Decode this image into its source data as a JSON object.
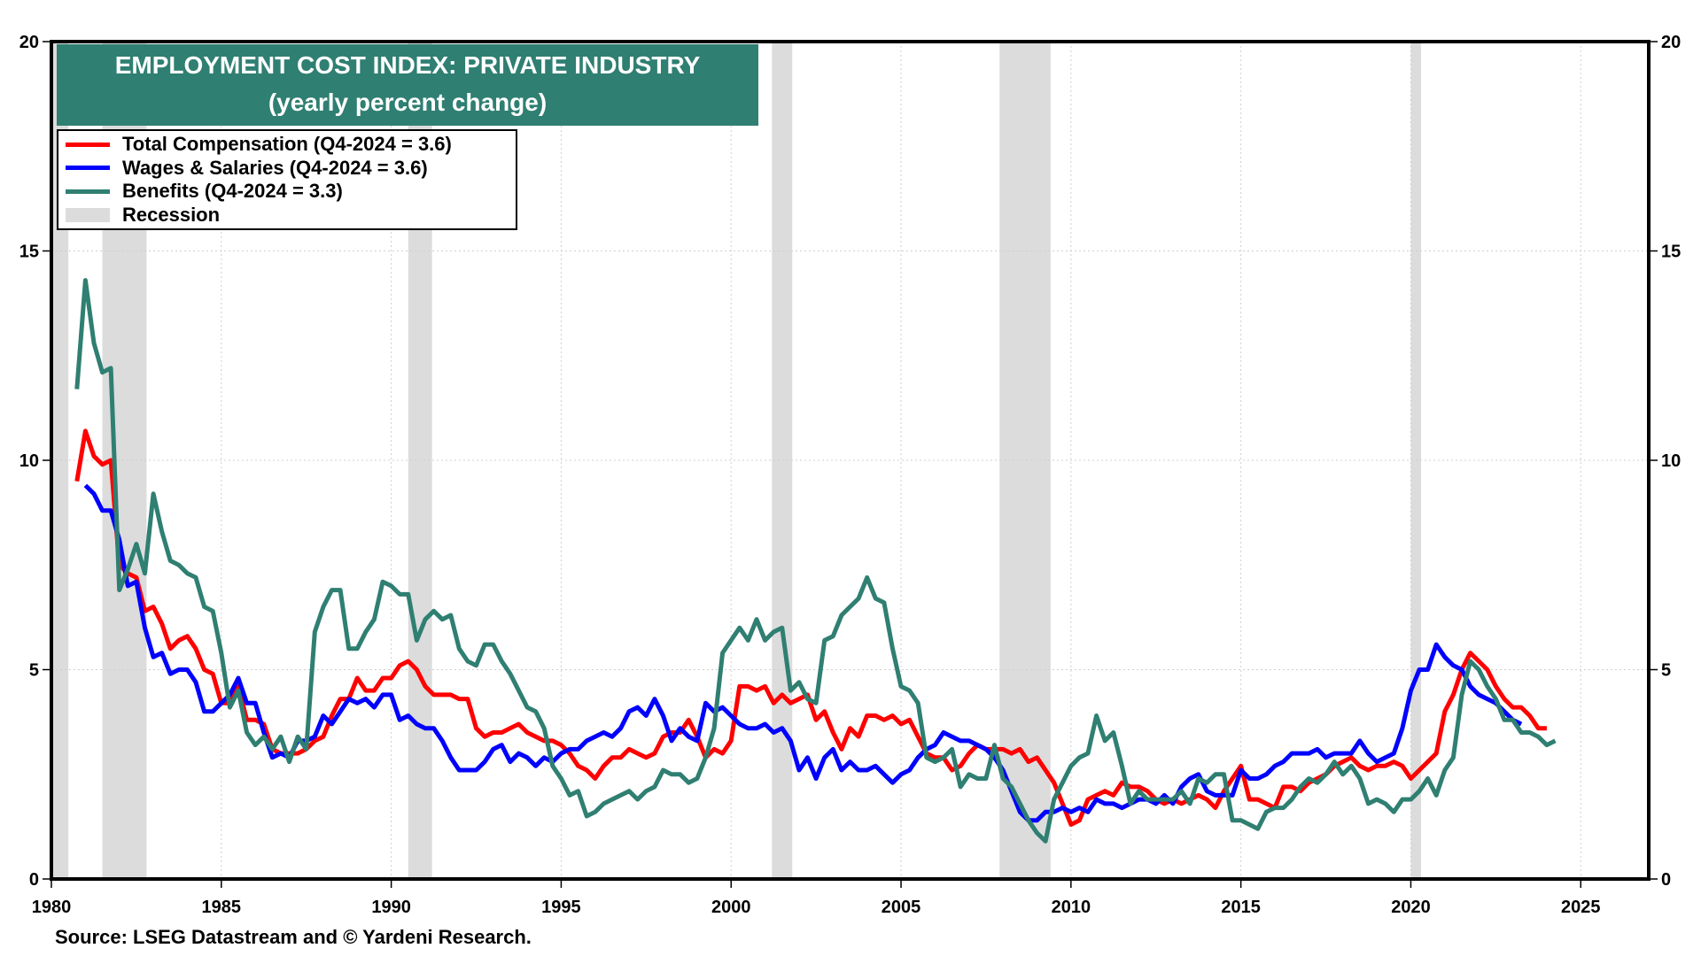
{
  "chart_data": {
    "type": "line",
    "title": "EMPLOYMENT COST INDEX: PRIVATE INDUSTRY",
    "subtitle": "(yearly percent change)",
    "source": "Source: LSEG Datastream and © Yardeni Research.",
    "xlabel": "",
    "ylabel": "",
    "xlim": [
      1980,
      2027
    ],
    "ylim": [
      0,
      20
    ],
    "x_ticks": [
      1980,
      1985,
      1990,
      1995,
      2000,
      2005,
      2010,
      2015,
      2020,
      2025
    ],
    "y_ticks": [
      0,
      5,
      10,
      15,
      20
    ],
    "grid": true,
    "legend_position": "top-left",
    "recessions": [
      [
        1980.0,
        1980.5
      ],
      [
        1981.5,
        1982.8
      ],
      [
        1990.5,
        1991.2
      ],
      [
        2001.2,
        2001.8
      ],
      [
        2007.9,
        2009.4
      ],
      [
        2020.0,
        2020.3
      ]
    ],
    "legend": [
      {
        "label": "Total Compensation (Q4-2024 = 3.6)",
        "color": "#ff0000",
        "kind": "line"
      },
      {
        "label": "Wages & Salaries (Q4-2024 = 3.6)",
        "color": "#0000ff",
        "kind": "line"
      },
      {
        "label": "Benefits  (Q4-2024 = 3.3)",
        "color": "#2f7f72",
        "kind": "line"
      },
      {
        "label": "Recession",
        "color": "#dcdcdc",
        "kind": "band"
      }
    ],
    "series": [
      {
        "name": "Total Compensation",
        "color": "#ff0000",
        "start": 1980.75,
        "step": 0.25,
        "values": [
          9.5,
          10.7,
          10.1,
          9.9,
          10.0,
          7.5,
          7.3,
          7.2,
          6.4,
          6.5,
          6.1,
          5.5,
          5.7,
          5.8,
          5.5,
          5.0,
          4.9,
          4.2,
          4.2,
          4.6,
          3.8,
          3.8,
          3.7,
          3.1,
          3.0,
          3.0,
          3.0,
          3.1,
          3.3,
          3.4,
          3.9,
          4.3,
          4.3,
          4.8,
          4.5,
          4.5,
          4.8,
          4.8,
          5.1,
          5.2,
          5.0,
          4.6,
          4.4,
          4.4,
          4.4,
          4.3,
          4.3,
          3.6,
          3.4,
          3.5,
          3.5,
          3.6,
          3.7,
          3.5,
          3.4,
          3.3,
          3.3,
          3.2,
          3.0,
          2.7,
          2.6,
          2.4,
          2.7,
          2.9,
          2.9,
          3.1,
          3.0,
          2.9,
          3.0,
          3.4,
          3.5,
          3.5,
          3.8,
          3.4,
          2.9,
          3.1,
          3.0,
          3.3,
          4.6,
          4.6,
          4.5,
          4.6,
          4.2,
          4.4,
          4.2,
          4.3,
          4.4,
          3.8,
          4.0,
          3.5,
          3.1,
          3.6,
          3.4,
          3.9,
          3.9,
          3.8,
          3.9,
          3.7,
          3.8,
          3.4,
          3.0,
          2.9,
          2.9,
          2.6,
          2.7,
          3.0,
          3.2,
          3.1,
          3.1,
          3.1,
          3.0,
          3.1,
          2.8,
          2.9,
          2.6,
          2.3,
          1.8,
          1.3,
          1.4,
          1.9,
          2.0,
          2.1,
          2.0,
          2.3,
          2.2,
          2.2,
          2.1,
          1.9,
          1.8,
          1.9,
          1.8,
          1.9,
          2.0,
          1.9,
          1.7,
          2.1,
          2.4,
          2.7,
          1.9,
          1.9,
          1.8,
          1.7,
          2.2,
          2.2,
          2.1,
          2.3,
          2.4,
          2.5,
          2.7,
          2.8,
          2.9,
          2.7,
          2.6,
          2.7,
          2.7,
          2.8,
          2.7,
          2.4,
          2.6,
          2.8,
          3.0,
          4.0,
          4.4,
          5.0,
          5.4,
          5.2,
          5.0,
          4.6,
          4.3,
          4.1,
          4.1,
          3.9,
          3.6,
          3.6
        ]
      },
      {
        "name": "Wages & Salaries",
        "color": "#0000ff",
        "start": 1981.0,
        "step": 0.25,
        "values": [
          9.4,
          9.2,
          8.8,
          8.8,
          8.1,
          7.0,
          7.1,
          6.0,
          5.3,
          5.4,
          4.9,
          5.0,
          5.0,
          4.7,
          4.0,
          4.0,
          4.2,
          4.4,
          4.8,
          4.2,
          4.2,
          3.5,
          2.9,
          3.0,
          2.9,
          3.3,
          3.3,
          3.4,
          3.9,
          3.7,
          4.0,
          4.3,
          4.2,
          4.3,
          4.1,
          4.4,
          4.4,
          3.8,
          3.9,
          3.7,
          3.6,
          3.6,
          3.3,
          2.9,
          2.6,
          2.6,
          2.6,
          2.8,
          3.1,
          3.2,
          2.8,
          3.0,
          2.9,
          2.7,
          2.9,
          2.8,
          3.0,
          3.1,
          3.1,
          3.3,
          3.4,
          3.5,
          3.4,
          3.6,
          4.0,
          4.1,
          3.9,
          4.3,
          3.9,
          3.3,
          3.6,
          3.4,
          3.3,
          4.2,
          4.0,
          4.1,
          3.9,
          3.7,
          3.6,
          3.6,
          3.7,
          3.5,
          3.6,
          3.3,
          2.6,
          2.9,
          2.4,
          2.9,
          3.1,
          2.6,
          2.8,
          2.6,
          2.6,
          2.7,
          2.5,
          2.3,
          2.5,
          2.6,
          2.9,
          3.1,
          3.2,
          3.5,
          3.4,
          3.3,
          3.3,
          3.2,
          3.1,
          2.9,
          2.6,
          2.1,
          1.6,
          1.4,
          1.4,
          1.6,
          1.6,
          1.7,
          1.6,
          1.7,
          1.6,
          1.9,
          1.8,
          1.8,
          1.7,
          1.8,
          1.9,
          1.9,
          1.8,
          2.0,
          1.8,
          2.2,
          2.4,
          2.5,
          2.1,
          2.0,
          2.0,
          2.0,
          2.6,
          2.4,
          2.4,
          2.5,
          2.7,
          2.8,
          3.0,
          3.0,
          3.0,
          3.1,
          2.9,
          3.0,
          3.0,
          3.0,
          3.3,
          3.0,
          2.8,
          2.9,
          3.0,
          3.6,
          4.5,
          5.0,
          5.0,
          5.6,
          5.3,
          5.1,
          5.0,
          4.6,
          4.4,
          4.3,
          4.2,
          4.0,
          3.8,
          3.7
        ]
      },
      {
        "name": "Benefits",
        "color": "#2f7f72",
        "start": 1980.75,
        "step": 0.25,
        "values": [
          11.7,
          14.3,
          12.8,
          12.1,
          12.2,
          6.9,
          7.4,
          8.0,
          7.3,
          9.2,
          8.3,
          7.6,
          7.5,
          7.3,
          7.2,
          6.5,
          6.4,
          5.4,
          4.1,
          4.5,
          3.5,
          3.2,
          3.4,
          3.1,
          3.4,
          2.8,
          3.4,
          3.1,
          5.9,
          6.5,
          6.9,
          6.9,
          5.5,
          5.5,
          5.9,
          6.2,
          7.1,
          7.0,
          6.8,
          6.8,
          5.7,
          6.2,
          6.4,
          6.2,
          6.3,
          5.5,
          5.2,
          5.1,
          5.6,
          5.6,
          5.2,
          4.9,
          4.5,
          4.1,
          4.0,
          3.6,
          2.7,
          2.4,
          2.0,
          2.1,
          1.5,
          1.6,
          1.8,
          1.9,
          2.0,
          2.1,
          1.9,
          2.1,
          2.2,
          2.6,
          2.5,
          2.5,
          2.3,
          2.4,
          2.9,
          3.6,
          5.4,
          5.7,
          6.0,
          5.7,
          6.2,
          5.7,
          5.9,
          6.0,
          4.5,
          4.7,
          4.3,
          4.2,
          5.7,
          5.8,
          6.3,
          6.5,
          6.7,
          7.2,
          6.7,
          6.6,
          5.5,
          4.6,
          4.5,
          4.2,
          2.9,
          2.8,
          2.9,
          3.1,
          2.2,
          2.5,
          2.4,
          2.4,
          3.2,
          2.4,
          2.2,
          1.8,
          1.4,
          1.1,
          0.9,
          1.9,
          2.3,
          2.7,
          2.9,
          3.0,
          3.9,
          3.3,
          3.5,
          2.7,
          1.8,
          2.1,
          1.9,
          1.9,
          1.9,
          1.9,
          2.1,
          1.8,
          2.4,
          2.3,
          2.5,
          2.5,
          1.4,
          1.4,
          1.3,
          1.2,
          1.6,
          1.7,
          1.7,
          1.9,
          2.2,
          2.4,
          2.3,
          2.5,
          2.8,
          2.5,
          2.7,
          2.4,
          1.8,
          1.9,
          1.8,
          1.6,
          1.9,
          1.9,
          2.1,
          2.4,
          2.0,
          2.6,
          2.9,
          4.4,
          5.2,
          5.0,
          4.6,
          4.3,
          3.8,
          3.8,
          3.5,
          3.5,
          3.4,
          3.2,
          3.3
        ]
      }
    ]
  }
}
